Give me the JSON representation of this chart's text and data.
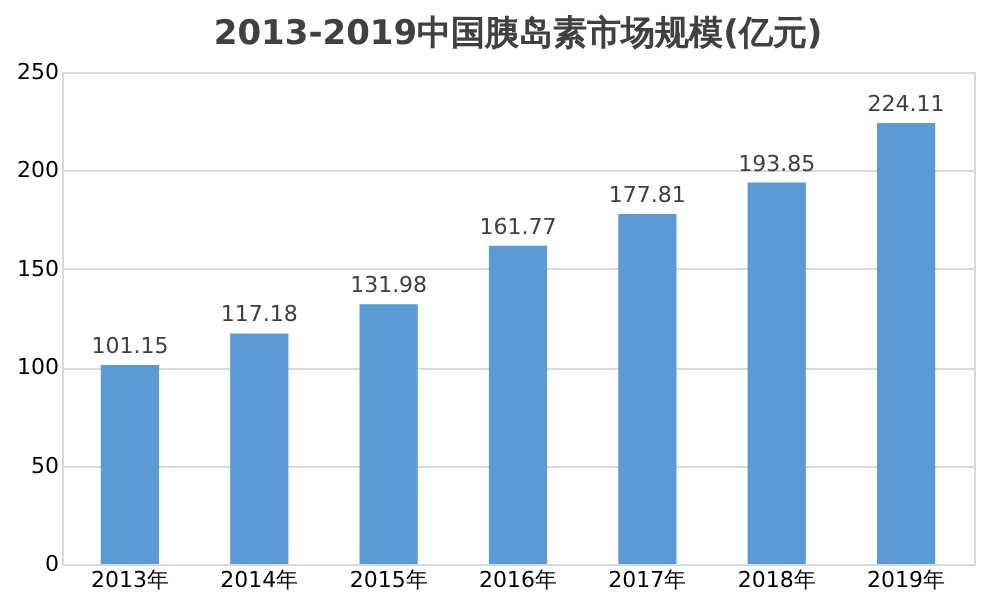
{
  "chart_data": {
    "type": "bar",
    "title": "2013-2019中国胰岛素市场规模(亿元)",
    "categories": [
      "2013年",
      "2014年",
      "2015年",
      "2016年",
      "2017年",
      "2018年",
      "2019年"
    ],
    "values": [
      101.15,
      117.18,
      131.98,
      161.77,
      177.81,
      193.85,
      224.11
    ],
    "color": "#5b9bd5",
    "ylim": [
      0,
      250
    ],
    "yticks": [
      0,
      50,
      100,
      150,
      200,
      250
    ],
    "grid": "y",
    "data_labels": true
  }
}
